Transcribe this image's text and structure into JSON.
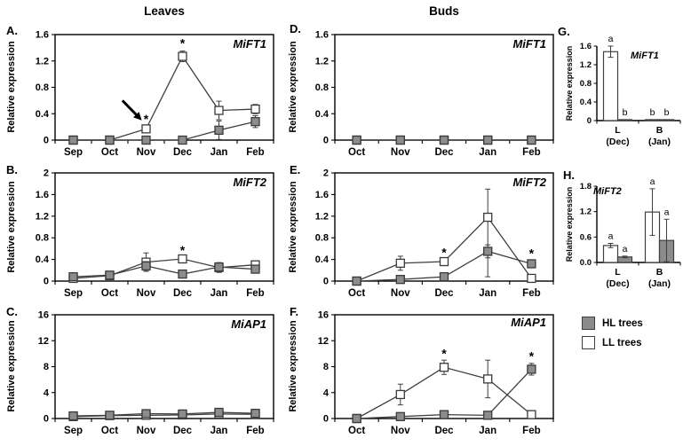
{
  "figure": {
    "column_titles": [
      {
        "label": "Leaves"
      },
      {
        "label": "Buds"
      }
    ]
  },
  "colors": {
    "line": "#3f3f3f",
    "marker_border": "#3a3a3a",
    "hl_fill": "#8c8c8c",
    "ll_fill": "#ffffff",
    "axis": "#000000"
  },
  "legend": {
    "items": [
      {
        "label": "HL trees",
        "swatch": "#8c8c8c"
      },
      {
        "label": "LL trees",
        "swatch": "#ffffff"
      }
    ]
  },
  "chart_data": [
    {
      "id": "A",
      "panel_label": "A.",
      "type": "line",
      "gene": "MiFT1",
      "ylabel": "Relative expression",
      "categories": [
        "Sep",
        "Oct",
        "Nov",
        "Dec",
        "Jan",
        "Feb"
      ],
      "ylim": [
        0,
        1.6
      ],
      "yticks": [
        "0",
        "0.4",
        "0.8",
        "1.2",
        "1.6"
      ],
      "series": [
        {
          "name": "LL trees",
          "fill": "#ffffff",
          "values": [
            0,
            0,
            0.17,
            1.27,
            0.45,
            0.47
          ],
          "err": [
            0,
            0,
            0.05,
            0.08,
            0.14,
            0.07
          ]
        },
        {
          "name": "HL trees",
          "fill": "#8c8c8c",
          "values": [
            0,
            0,
            0,
            0,
            0.15,
            0.28
          ],
          "err": [
            0,
            0,
            0,
            0,
            0.14,
            0.09
          ]
        }
      ],
      "asterisks": [
        {
          "xi": 2,
          "y": 0.31,
          "symbol": "*"
        },
        {
          "xi": 3,
          "y": 1.46,
          "symbol": "*"
        }
      ],
      "arrow": {
        "x1": 1.35,
        "y1": 0.6,
        "x2": 1.88,
        "y2": 0.3
      }
    },
    {
      "id": "B",
      "panel_label": "B.",
      "type": "line",
      "gene": "MiFT2",
      "ylabel": "Relative expression",
      "categories": [
        "Sep",
        "Oct",
        "Nov",
        "Dec",
        "Jan",
        "Feb"
      ],
      "ylim": [
        0,
        2
      ],
      "yticks": [
        "0",
        "0.4",
        "0.8",
        "1.2",
        "1.6",
        "2"
      ],
      "series": [
        {
          "name": "LL trees",
          "fill": "#ffffff",
          "values": [
            0.05,
            0.1,
            0.35,
            0.41,
            0.25,
            0.3
          ],
          "err": [
            0.02,
            0.02,
            0.17,
            0.03,
            0.09,
            0.05
          ]
        },
        {
          "name": "HL trees",
          "fill": "#8c8c8c",
          "values": [
            0.08,
            0.11,
            0.28,
            0.13,
            0.26,
            0.22
          ],
          "err": [
            0.03,
            0.02,
            0.08,
            0.02,
            0.08,
            0.04
          ]
        }
      ],
      "asterisks": [
        {
          "xi": 3,
          "y": 0.56,
          "symbol": "*"
        }
      ]
    },
    {
      "id": "C",
      "panel_label": "C.",
      "type": "line",
      "gene": "MiAP1",
      "ylabel": "Relative expression",
      "categories": [
        "Sep",
        "Oct",
        "Nov",
        "Dec",
        "Jan",
        "Feb"
      ],
      "ylim": [
        0,
        16
      ],
      "yticks": [
        "0",
        "4",
        "8",
        "12",
        "16"
      ],
      "series": [
        {
          "name": "LL trees",
          "fill": "#ffffff",
          "values": [
            0.3,
            0.45,
            0.5,
            0.55,
            0.7,
            0.65
          ],
          "err": [
            0.1,
            0.1,
            0.15,
            0.15,
            0.2,
            0.15
          ]
        },
        {
          "name": "HL trees",
          "fill": "#8c8c8c",
          "values": [
            0.4,
            0.5,
            0.75,
            0.7,
            0.95,
            0.8
          ],
          "err": [
            0.1,
            0.1,
            0.2,
            0.15,
            0.25,
            0.2
          ]
        }
      ],
      "asterisks": []
    },
    {
      "id": "D",
      "panel_label": "D.",
      "type": "line",
      "gene": "MiFT1",
      "ylabel": "Relative expression",
      "categories": [
        "Oct",
        "Nov",
        "Dec",
        "Jan",
        "Feb"
      ],
      "ylim": [
        0,
        1.6
      ],
      "yticks": [
        "0",
        "0.4",
        "0.8",
        "1.2",
        "1.6"
      ],
      "series": [
        {
          "name": "LL trees",
          "fill": "#ffffff",
          "values": [
            0,
            0,
            0,
            0,
            0
          ],
          "err": [
            0,
            0,
            0,
            0,
            0
          ]
        },
        {
          "name": "HL trees",
          "fill": "#8c8c8c",
          "values": [
            0,
            0,
            0,
            0,
            0
          ],
          "err": [
            0,
            0,
            0,
            0,
            0
          ]
        }
      ],
      "asterisks": []
    },
    {
      "id": "E",
      "panel_label": "E.",
      "type": "line",
      "gene": "MiFT2",
      "ylabel": "Relative expression",
      "categories": [
        "Oct",
        "Nov",
        "Dec",
        "Jan",
        "Feb"
      ],
      "ylim": [
        0,
        2
      ],
      "yticks": [
        "0",
        "0.4",
        "0.8",
        "1.2",
        "1.6",
        "2"
      ],
      "series": [
        {
          "name": "LL trees",
          "fill": "#ffffff",
          "values": [
            0,
            0.33,
            0.36,
            1.18,
            0.05
          ],
          "err": [
            0,
            0.13,
            0.04,
            [
              1.1,
              0.52
            ],
            0
          ]
        },
        {
          "name": "HL trees",
          "fill": "#8c8c8c",
          "values": [
            0,
            0.03,
            0.08,
            0.55,
            0.32
          ],
          "err": [
            0,
            0,
            0,
            0.12,
            0.05
          ]
        }
      ],
      "asterisks": [
        {
          "xi": 2,
          "y": 0.52,
          "symbol": "*"
        },
        {
          "xi": 4,
          "y": 0.5,
          "symbol": "*"
        }
      ]
    },
    {
      "id": "F",
      "panel_label": "F.",
      "type": "line",
      "gene": "MiAP1",
      "ylabel": "Relative expression",
      "categories": [
        "Oct",
        "Nov",
        "Dec",
        "Jan",
        "Feb"
      ],
      "ylim": [
        0,
        16
      ],
      "yticks": [
        "0",
        "4",
        "8",
        "12",
        "16"
      ],
      "series": [
        {
          "name": "LL trees",
          "fill": "#ffffff",
          "values": [
            0,
            3.7,
            7.9,
            6.1,
            0.6
          ],
          "err": [
            0,
            1.6,
            1.1,
            2.9,
            0
          ]
        },
        {
          "name": "HL trees",
          "fill": "#8c8c8c",
          "values": [
            0,
            0.3,
            0.6,
            0.5,
            7.6
          ],
          "err": [
            0,
            0,
            0,
            0,
            0.9
          ]
        }
      ],
      "asterisks": [
        {
          "xi": 2,
          "y": 9.9,
          "symbol": "*"
        },
        {
          "xi": 4,
          "y": 9.5,
          "symbol": "*"
        }
      ]
    },
    {
      "id": "G",
      "panel_label": "G.",
      "type": "bar",
      "gene": "MiFT1",
      "ylabel": "Relative expression",
      "groups": [
        {
          "label": "L",
          "sub": "(Dec)"
        },
        {
          "label": "B",
          "sub": "(Jan)"
        }
      ],
      "ylim": [
        0,
        1.6
      ],
      "yticks": [
        "0",
        "0.4",
        "0.8",
        "1.2",
        "1.6"
      ],
      "series": [
        {
          "name": "LL trees",
          "fill": "#ffffff",
          "values": [
            1.48,
            0.02
          ],
          "err": [
            0.12,
            0
          ],
          "letters": [
            "a",
            "b"
          ]
        },
        {
          "name": "HL trees",
          "fill": "#8c8c8c",
          "values": [
            0.02,
            0.02
          ],
          "err": [
            0,
            0
          ],
          "letters": [
            "b",
            "b"
          ]
        }
      ]
    },
    {
      "id": "H",
      "panel_label": "H.",
      "type": "bar",
      "gene": "MiFT2",
      "ylabel": "Relative expression",
      "groups": [
        {
          "label": "L",
          "sub": "(Dec)"
        },
        {
          "label": "B",
          "sub": "(Jan)"
        }
      ],
      "ylim": [
        0,
        1.8
      ],
      "yticks": [
        "0.0",
        "0.6",
        "1.2",
        "1.8"
      ],
      "series": [
        {
          "name": "LL trees",
          "fill": "#ffffff",
          "values": [
            0.4,
            1.19
          ],
          "err": [
            0.05,
            0.55
          ],
          "letters": [
            "a",
            "a"
          ]
        },
        {
          "name": "HL trees",
          "fill": "#8c8c8c",
          "values": [
            0.13,
            0.52
          ],
          "err": [
            0.02,
            0.5
          ],
          "letters": [
            "a",
            "a"
          ]
        }
      ]
    }
  ]
}
